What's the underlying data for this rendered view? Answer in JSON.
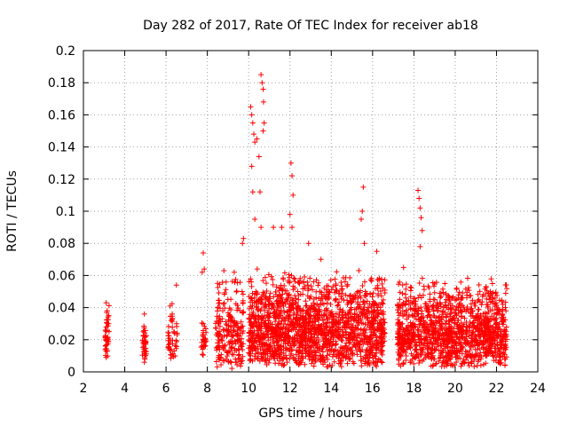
{
  "chart_data": {
    "type": "scatter",
    "title": "Day 282 of 2017, Rate Of TEC Index for receiver ab18",
    "xlabel": "GPS time / hours",
    "ylabel": "ROTI / TECUs",
    "xlim": [
      2,
      24
    ],
    "ylim": [
      0,
      0.2
    ],
    "x_ticks": [
      2,
      4,
      6,
      8,
      10,
      12,
      14,
      16,
      18,
      20,
      22,
      24
    ],
    "y_ticks": [
      0,
      0.02,
      0.04,
      0.06,
      0.08,
      0.1,
      0.12,
      0.14,
      0.16,
      0.18,
      0.2
    ],
    "x_tick_labels": [
      "2",
      "4",
      "6",
      "8",
      "10",
      "12",
      "14",
      "16",
      "18",
      "20",
      "22",
      "24"
    ],
    "y_tick_labels": [
      "0",
      "0.02",
      "0.04",
      "0.06",
      "0.08",
      "0.1",
      "0.12",
      "0.14",
      "0.16",
      "0.18",
      "0.2"
    ],
    "grid": true,
    "marker": "plus",
    "color": "#ff0000",
    "clusters": [
      {
        "x_range": [
          3.05,
          3.25
        ],
        "y_range": [
          0.007,
          0.044
        ],
        "count": 40
      },
      {
        "x_range": [
          4.85,
          5.05
        ],
        "y_range": [
          0.005,
          0.037
        ],
        "count": 35
      },
      {
        "x_range": [
          6.05,
          6.55
        ],
        "y_range": [
          0.008,
          0.043
        ],
        "count": 45
      },
      {
        "x_range": [
          7.7,
          7.95
        ],
        "y_range": [
          0.01,
          0.033
        ],
        "count": 30
      },
      {
        "x_range": [
          8.4,
          9.75
        ],
        "y_range": [
          0.002,
          0.065
        ],
        "count": 220
      },
      {
        "x_range": [
          10.0,
          16.6
        ],
        "y_range": [
          0.003,
          0.065
        ],
        "count": 1700
      },
      {
        "x_range": [
          17.2,
          22.5
        ],
        "y_range": [
          0.003,
          0.06
        ],
        "count": 1300
      }
    ],
    "points": [
      {
        "x": 3.1,
        "y": 0.043
      },
      {
        "x": 3.15,
        "y": 0.038
      },
      {
        "x": 3.1,
        "y": 0.028
      },
      {
        "x": 3.2,
        "y": 0.02
      },
      {
        "x": 3.15,
        "y": 0.013
      },
      {
        "x": 3.1,
        "y": 0.009
      },
      {
        "x": 4.95,
        "y": 0.036
      },
      {
        "x": 4.9,
        "y": 0.025
      },
      {
        "x": 5.0,
        "y": 0.018
      },
      {
        "x": 4.95,
        "y": 0.006
      },
      {
        "x": 6.2,
        "y": 0.041
      },
      {
        "x": 6.3,
        "y": 0.036
      },
      {
        "x": 6.5,
        "y": 0.054
      },
      {
        "x": 6.1,
        "y": 0.015
      },
      {
        "x": 7.8,
        "y": 0.074
      },
      {
        "x": 7.85,
        "y": 0.064
      },
      {
        "x": 7.75,
        "y": 0.062
      },
      {
        "x": 7.8,
        "y": 0.03
      },
      {
        "x": 8.8,
        "y": 0.063
      },
      {
        "x": 9.3,
        "y": 0.062
      },
      {
        "x": 9.7,
        "y": 0.08
      },
      {
        "x": 9.75,
        "y": 0.083
      },
      {
        "x": 10.1,
        "y": 0.165
      },
      {
        "x": 10.15,
        "y": 0.16
      },
      {
        "x": 10.2,
        "y": 0.155
      },
      {
        "x": 10.25,
        "y": 0.148
      },
      {
        "x": 10.3,
        "y": 0.143
      },
      {
        "x": 10.4,
        "y": 0.145
      },
      {
        "x": 10.15,
        "y": 0.128
      },
      {
        "x": 10.5,
        "y": 0.134
      },
      {
        "x": 10.6,
        "y": 0.185
      },
      {
        "x": 10.65,
        "y": 0.18
      },
      {
        "x": 10.7,
        "y": 0.176
      },
      {
        "x": 10.72,
        "y": 0.168
      },
      {
        "x": 10.75,
        "y": 0.155
      },
      {
        "x": 10.7,
        "y": 0.15
      },
      {
        "x": 10.2,
        "y": 0.112
      },
      {
        "x": 10.55,
        "y": 0.112
      },
      {
        "x": 10.3,
        "y": 0.095
      },
      {
        "x": 10.6,
        "y": 0.09
      },
      {
        "x": 11.2,
        "y": 0.09
      },
      {
        "x": 11.6,
        "y": 0.09
      },
      {
        "x": 12.05,
        "y": 0.13
      },
      {
        "x": 12.1,
        "y": 0.122
      },
      {
        "x": 12.15,
        "y": 0.11
      },
      {
        "x": 12.0,
        "y": 0.098
      },
      {
        "x": 12.1,
        "y": 0.09
      },
      {
        "x": 12.9,
        "y": 0.08
      },
      {
        "x": 13.5,
        "y": 0.07
      },
      {
        "x": 15.55,
        "y": 0.115
      },
      {
        "x": 15.5,
        "y": 0.1
      },
      {
        "x": 15.45,
        "y": 0.095
      },
      {
        "x": 15.6,
        "y": 0.08
      },
      {
        "x": 16.2,
        "y": 0.075
      },
      {
        "x": 18.2,
        "y": 0.113
      },
      {
        "x": 18.25,
        "y": 0.108
      },
      {
        "x": 18.3,
        "y": 0.102
      },
      {
        "x": 18.35,
        "y": 0.096
      },
      {
        "x": 18.4,
        "y": 0.088
      },
      {
        "x": 18.3,
        "y": 0.078
      },
      {
        "x": 17.5,
        "y": 0.065
      },
      {
        "x": 19.5,
        "y": 0.055
      },
      {
        "x": 21.8,
        "y": 0.055
      },
      {
        "x": 21.7,
        "y": 0.05
      },
      {
        "x": 22.3,
        "y": 0.042
      },
      {
        "x": 22.4,
        "y": 0.008
      }
    ]
  }
}
